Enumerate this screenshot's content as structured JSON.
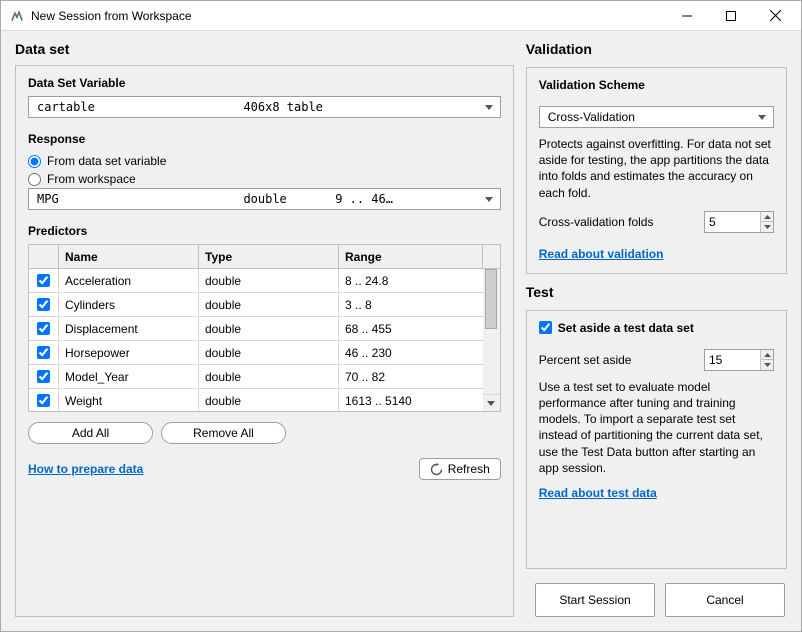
{
  "window": {
    "title": "New Session from Workspace"
  },
  "dataset": {
    "heading": "Data set",
    "variable_label": "Data Set Variable",
    "variable_name": "cartable",
    "variable_info": "406x8 table",
    "response_label": "Response",
    "response_opt_var": "From data set variable",
    "response_opt_ws": "From workspace",
    "response_name": "MPG",
    "response_type": "double",
    "response_range": "9 .. 46…",
    "predictors_label": "Predictors",
    "columns": {
      "name": "Name",
      "type": "Type",
      "range": "Range"
    },
    "rows": [
      {
        "checked": true,
        "name": "Acceleration",
        "type": "double",
        "range": "8 .. 24.8"
      },
      {
        "checked": true,
        "name": "Cylinders",
        "type": "double",
        "range": "3 .. 8"
      },
      {
        "checked": true,
        "name": "Displacement",
        "type": "double",
        "range": "68 .. 455"
      },
      {
        "checked": true,
        "name": "Horsepower",
        "type": "double",
        "range": "46 .. 230"
      },
      {
        "checked": true,
        "name": "Model_Year",
        "type": "double",
        "range": "70 .. 82"
      },
      {
        "checked": true,
        "name": "Weight",
        "type": "double",
        "range": "1613 .. 5140"
      }
    ],
    "add_all": "Add All",
    "remove_all": "Remove All",
    "prepare_link": "How to prepare data",
    "refresh": "Refresh"
  },
  "validation": {
    "heading": "Validation",
    "scheme_label": "Validation Scheme",
    "scheme_value": "Cross-Validation",
    "desc": "Protects against overfitting. For data not set aside for testing, the app partitions the data into folds and estimates the accuracy on each fold.",
    "folds_label": "Cross-validation folds",
    "folds_value": "5",
    "link": "Read about validation"
  },
  "test": {
    "heading": "Test",
    "set_aside_label": "Set aside a test data set",
    "set_aside_checked": true,
    "percent_label": "Percent set aside",
    "percent_value": "15",
    "desc": "Use a test set to evaluate model performance after tuning and training models. To import a separate test set instead of partitioning the current data set, use the Test Data button after starting an app session.",
    "link": "Read about test data"
  },
  "actions": {
    "start": "Start Session",
    "cancel": "Cancel"
  },
  "colors": {
    "link": "#0066cc"
  }
}
